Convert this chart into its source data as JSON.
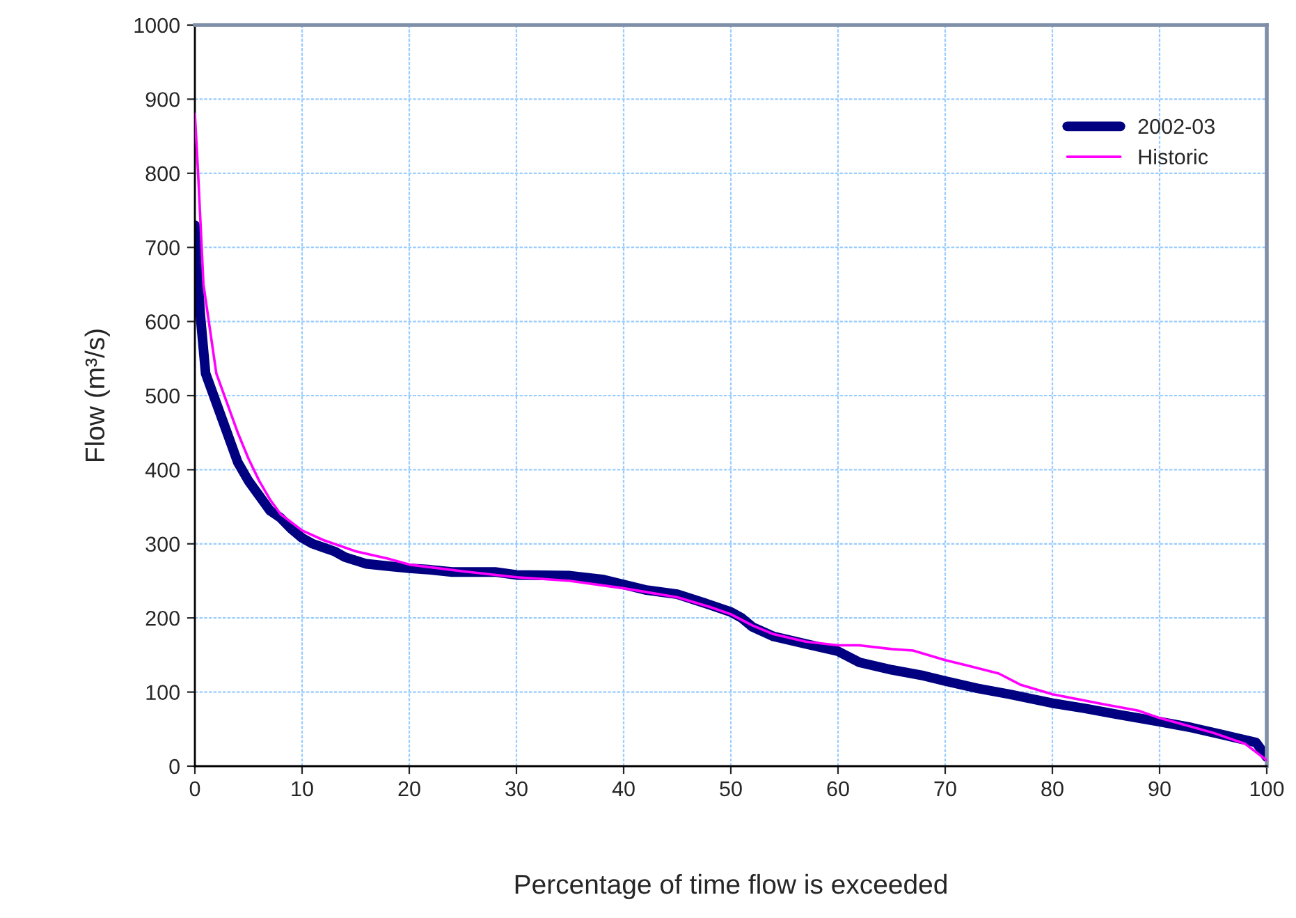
{
  "chart_data": {
    "type": "line",
    "xlabel": "Percentage of time flow is exceeded",
    "ylabel": "Flow (m³/s)",
    "xlim": [
      0,
      100
    ],
    "xticks": [
      0,
      10,
      20,
      30,
      40,
      50,
      60,
      70,
      80,
      90,
      100
    ],
    "ylim": [
      0,
      1000
    ],
    "yticks": [
      0,
      100,
      200,
      300,
      400,
      500,
      600,
      700,
      800,
      900,
      1000
    ],
    "grid": true,
    "legend": "top right",
    "marker": "none",
    "line_style": "solid",
    "series": [
      {
        "name": "2002-03",
        "color": "#000080",
        "x": [
          0,
          0.5,
          1,
          2,
          3,
          4,
          5,
          6,
          7,
          8,
          9,
          10,
          11,
          12,
          13,
          14,
          16,
          18,
          20,
          22,
          24,
          28,
          30,
          35,
          38,
          40,
          42,
          45,
          48,
          50,
          51,
          52,
          54,
          57,
          60,
          62,
          65,
          68,
          70,
          73,
          76,
          80,
          83,
          86,
          90,
          93,
          96,
          99,
          100
        ],
        "values": [
          730,
          610,
          530,
          490,
          450,
          410,
          385,
          365,
          345,
          335,
          320,
          308,
          300,
          295,
          290,
          282,
          273,
          270,
          267,
          265,
          262,
          262,
          258,
          257,
          252,
          245,
          238,
          232,
          218,
          208,
          200,
          188,
          175,
          165,
          155,
          140,
          130,
          122,
          115,
          105,
          97,
          85,
          78,
          70,
          60,
          52,
          42,
          32,
          12
        ]
      },
      {
        "name": "Historic",
        "color": "#ff00ff",
        "x": [
          0,
          0.3,
          0.8,
          1.5,
          2,
          3,
          4,
          5,
          6,
          7,
          8,
          10,
          12,
          15,
          18,
          20,
          25,
          30,
          35,
          40,
          45,
          48,
          50,
          52,
          54,
          57,
          60,
          62,
          65,
          67,
          70,
          72,
          75,
          77,
          80,
          85,
          88,
          90,
          92,
          95,
          98,
          100
        ],
        "values": [
          880,
          800,
          650,
          580,
          530,
          490,
          450,
          415,
          385,
          360,
          340,
          318,
          305,
          290,
          280,
          272,
          263,
          255,
          250,
          240,
          228,
          215,
          205,
          190,
          178,
          168,
          163,
          163,
          158,
          156,
          143,
          136,
          125,
          110,
          97,
          83,
          75,
          65,
          57,
          45,
          30,
          8
        ]
      }
    ]
  }
}
